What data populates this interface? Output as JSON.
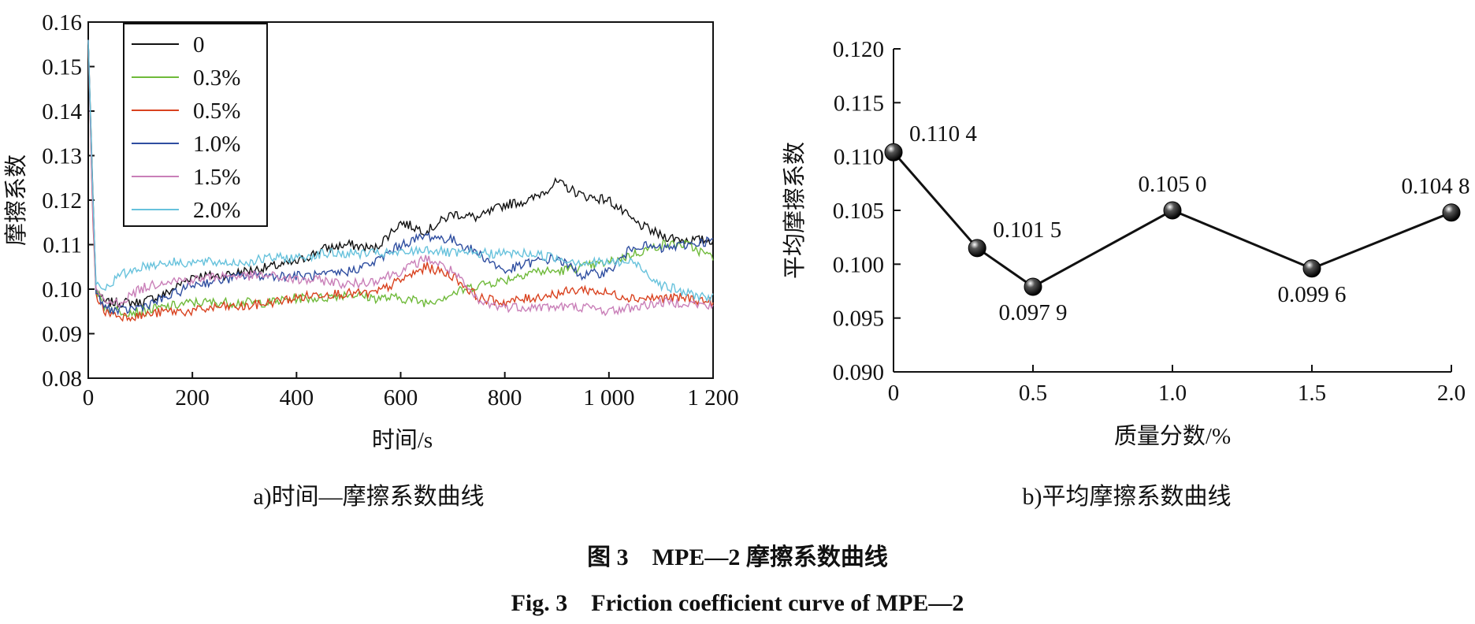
{
  "chart_data": [
    {
      "type": "line",
      "caption": "a)时间—摩擦系数曲线",
      "xlabel": "时间/s",
      "ylabel": "摩擦系数",
      "xlim": [
        0,
        1200
      ],
      "ylim": [
        0.08,
        0.16
      ],
      "x_ticks": [
        0,
        200,
        400,
        600,
        800,
        1000,
        1200
      ],
      "x_tick_labels": [
        "0",
        "200",
        "400",
        "600",
        "800",
        "1 000",
        "1 200"
      ],
      "y_ticks": [
        0.08,
        0.09,
        0.1,
        0.11,
        0.12,
        0.13,
        0.14,
        0.15,
        0.16
      ],
      "y_tick_labels": [
        "0.08",
        "0.09",
        "0.10",
        "0.11",
        "0.12",
        "0.13",
        "0.14",
        "0.15",
        "0.16"
      ],
      "legend_position": "top-left",
      "x": [
        0,
        8,
        15,
        30,
        60,
        100,
        150,
        200,
        250,
        300,
        350,
        400,
        450,
        500,
        550,
        600,
        650,
        700,
        750,
        800,
        850,
        900,
        950,
        1000,
        1050,
        1100,
        1150,
        1200
      ],
      "series": [
        {
          "name": "0",
          "color": "#111111",
          "values": [
            0.156,
            0.125,
            0.1,
            0.097,
            0.097,
            0.097,
            0.099,
            0.103,
            0.103,
            0.104,
            0.105,
            0.106,
            0.109,
            0.11,
            0.109,
            0.115,
            0.113,
            0.117,
            0.116,
            0.119,
            0.12,
            0.124,
            0.121,
            0.12,
            0.115,
            0.112,
            0.111,
            0.111
          ]
        },
        {
          "name": "0.3%",
          "color": "#6fba3a",
          "values": [
            0.156,
            0.12,
            0.1,
            0.096,
            0.095,
            0.095,
            0.096,
            0.097,
            0.097,
            0.097,
            0.097,
            0.098,
            0.098,
            0.099,
            0.098,
            0.098,
            0.097,
            0.099,
            0.101,
            0.102,
            0.104,
            0.104,
            0.105,
            0.106,
            0.108,
            0.11,
            0.11,
            0.107
          ]
        },
        {
          "name": "0.5%",
          "color": "#d9421f",
          "values": [
            0.156,
            0.118,
            0.099,
            0.095,
            0.094,
            0.094,
            0.095,
            0.095,
            0.096,
            0.096,
            0.097,
            0.098,
            0.099,
            0.099,
            0.099,
            0.102,
            0.105,
            0.103,
            0.098,
            0.097,
            0.098,
            0.099,
            0.1,
            0.099,
            0.098,
            0.098,
            0.098,
            0.097
          ]
        },
        {
          "name": "1.0%",
          "color": "#2f4ea0",
          "values": [
            0.156,
            0.122,
            0.099,
            0.096,
            0.095,
            0.096,
            0.098,
            0.101,
            0.102,
            0.103,
            0.103,
            0.103,
            0.103,
            0.104,
            0.106,
            0.11,
            0.112,
            0.111,
            0.108,
            0.104,
            0.106,
            0.107,
            0.103,
            0.104,
            0.11,
            0.109,
            0.11,
            0.111
          ]
        },
        {
          "name": "1.5%",
          "color": "#c97fb8",
          "values": [
            0.156,
            0.119,
            0.1,
            0.097,
            0.097,
            0.1,
            0.102,
            0.102,
            0.103,
            0.103,
            0.103,
            0.102,
            0.102,
            0.101,
            0.102,
            0.104,
            0.107,
            0.104,
            0.097,
            0.096,
            0.096,
            0.096,
            0.096,
            0.095,
            0.096,
            0.097,
            0.097,
            0.096
          ]
        },
        {
          "name": "2.0%",
          "color": "#67c2dc",
          "values": [
            0.156,
            0.124,
            0.101,
            0.1,
            0.103,
            0.105,
            0.106,
            0.106,
            0.106,
            0.106,
            0.107,
            0.107,
            0.108,
            0.108,
            0.108,
            0.108,
            0.109,
            0.108,
            0.108,
            0.108,
            0.108,
            0.107,
            0.106,
            0.106,
            0.106,
            0.101,
            0.099,
            0.098
          ]
        }
      ]
    },
    {
      "type": "line",
      "caption": "b)平均摩擦系数曲线",
      "xlabel": "质量分数/%",
      "ylabel": "平均摩擦系数",
      "xlim": [
        0,
        2.0
      ],
      "ylim": [
        0.09,
        0.12
      ],
      "x_ticks": [
        0,
        0.5,
        1.0,
        1.5,
        2.0
      ],
      "x_tick_labels": [
        "0",
        "0.5",
        "1.0",
        "1.5",
        "2.0"
      ],
      "y_ticks": [
        0.09,
        0.095,
        0.1,
        0.105,
        0.11,
        0.115,
        0.12
      ],
      "y_tick_labels": [
        "0.090",
        "0.095",
        "0.100",
        "0.105",
        "0.110",
        "0.115",
        "0.120"
      ],
      "x": [
        0,
        0.3,
        0.5,
        1.0,
        1.5,
        2.0
      ],
      "values": [
        0.1104,
        0.1015,
        0.0979,
        0.105,
        0.0996,
        0.1048
      ],
      "point_labels": [
        "0.110 4",
        "0.101 5",
        "0.097 9",
        "0.105 0",
        "0.099 6",
        "0.104 8"
      ],
      "label_placement": [
        "right-above",
        "right-above",
        "below",
        "above",
        "below",
        "above-left"
      ]
    }
  ],
  "figure": {
    "title_cn_prefix": "图 3",
    "title_cn_body": "MPE—2 摩擦系数曲线",
    "title_en_prefix": "Fig. 3",
    "title_en_body": "Friction coefficient curve of MPE—2"
  }
}
